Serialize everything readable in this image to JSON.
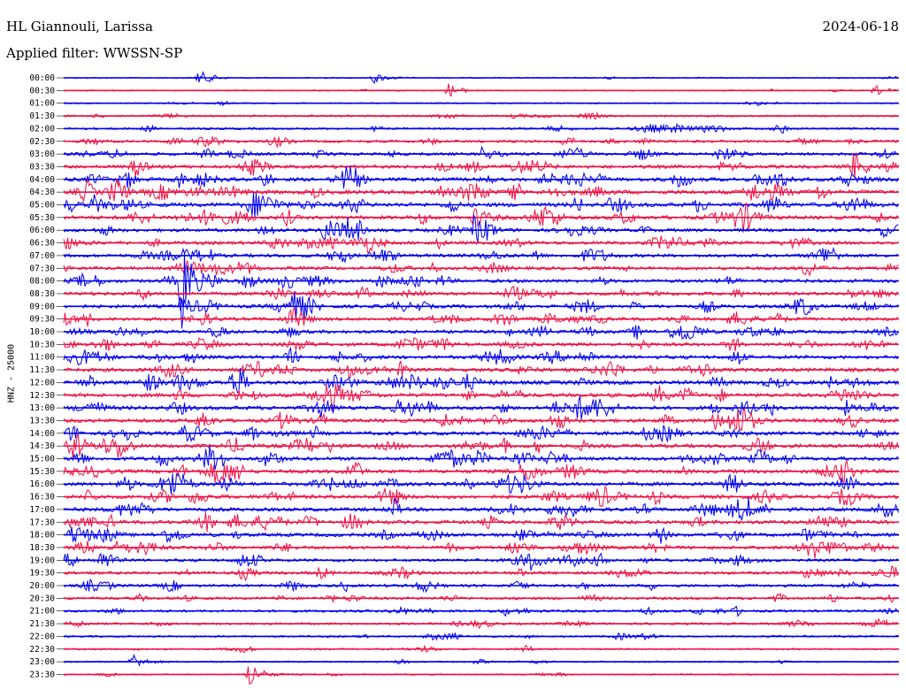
{
  "header": {
    "station": "HL Giannouli, Larissa",
    "date": "2024-06-18",
    "filter": "Applied filter: WWSSN-SP",
    "channel": "HNZ - 25000"
  },
  "colors": {
    "odd_trace": "#0000ee",
    "even_trace": "#ee1144",
    "text": "#000000",
    "background": "#ffffff"
  },
  "chart_data": {
    "type": "line",
    "title": "HL Giannouli, Larissa",
    "subtitle": "Applied filter: WWSSN-SP",
    "date": "2024-06-18",
    "ylabel": "HNZ - 25000",
    "grid": false,
    "legend": "none",
    "rows": [
      "00:00",
      "00:30",
      "01:00",
      "01:30",
      "02:00",
      "02:30",
      "03:00",
      "03:30",
      "04:00",
      "04:30",
      "05:00",
      "05:30",
      "06:00",
      "06:30",
      "07:00",
      "07:30",
      "08:00",
      "08:30",
      "09:00",
      "09:30",
      "10:00",
      "10:30",
      "11:00",
      "11:30",
      "12:00",
      "12:30",
      "13:00",
      "13:30",
      "14:00",
      "14:30",
      "15:00",
      "15:30",
      "16:00",
      "16:30",
      "17:00",
      "17:30",
      "18:00",
      "18:30",
      "19:00",
      "19:30",
      "20:00",
      "20:30",
      "21:00",
      "21:30",
      "22:00",
      "22:30",
      "23:00",
      "23:30"
    ],
    "row_color_cycle": [
      "blue",
      "red"
    ],
    "noise_level": [
      0.8,
      0.8,
      1.0,
      1.6,
      2.0,
      2.5,
      3.0,
      3.5,
      4.0,
      4.5,
      4.5,
      4.0,
      3.5,
      3.5,
      3.5,
      3.5,
      3.5,
      3.5,
      3.5,
      3.5,
      3.5,
      3.5,
      3.8,
      4.0,
      4.2,
      4.2,
      4.2,
      4.0,
      4.0,
      4.0,
      4.0,
      4.0,
      4.0,
      4.0,
      4.0,
      4.0,
      3.8,
      3.5,
      3.0,
      3.0,
      2.8,
      2.6,
      2.4,
      2.0,
      1.6,
      1.4,
      1.2,
      1.0
    ],
    "events": [
      {
        "row": "00:00",
        "t": 0.16,
        "amp": 8
      },
      {
        "row": "00:00",
        "t": 0.37,
        "amp": 7
      },
      {
        "row": "00:30",
        "t": 0.46,
        "amp": 9
      },
      {
        "row": "00:30",
        "t": 0.97,
        "amp": 7
      },
      {
        "row": "03:00",
        "t": 0.5,
        "amp": 8
      },
      {
        "row": "04:30",
        "t": 0.58,
        "amp": 10
      },
      {
        "row": "05:30",
        "t": 0.49,
        "amp": 16
      },
      {
        "row": "06:00",
        "t": 0.31,
        "amp": 28
      },
      {
        "row": "06:00",
        "t": 0.49,
        "amp": 14
      },
      {
        "row": "06:30",
        "t": 0.0,
        "amp": 10
      },
      {
        "row": "08:00",
        "t": 0.14,
        "amp": 60
      },
      {
        "row": "09:00",
        "t": 0.14,
        "amp": 14
      },
      {
        "row": "12:00",
        "t": 0.48,
        "amp": 12
      },
      {
        "row": "14:30",
        "t": 0.01,
        "amp": 10
      },
      {
        "row": "15:00",
        "t": 0.44,
        "amp": 12
      },
      {
        "row": "19:00",
        "t": 0.8,
        "amp": 10
      },
      {
        "row": "23:00",
        "t": 0.08,
        "amp": 12
      },
      {
        "row": "23:30",
        "t": 0.22,
        "amp": 20
      }
    ]
  }
}
